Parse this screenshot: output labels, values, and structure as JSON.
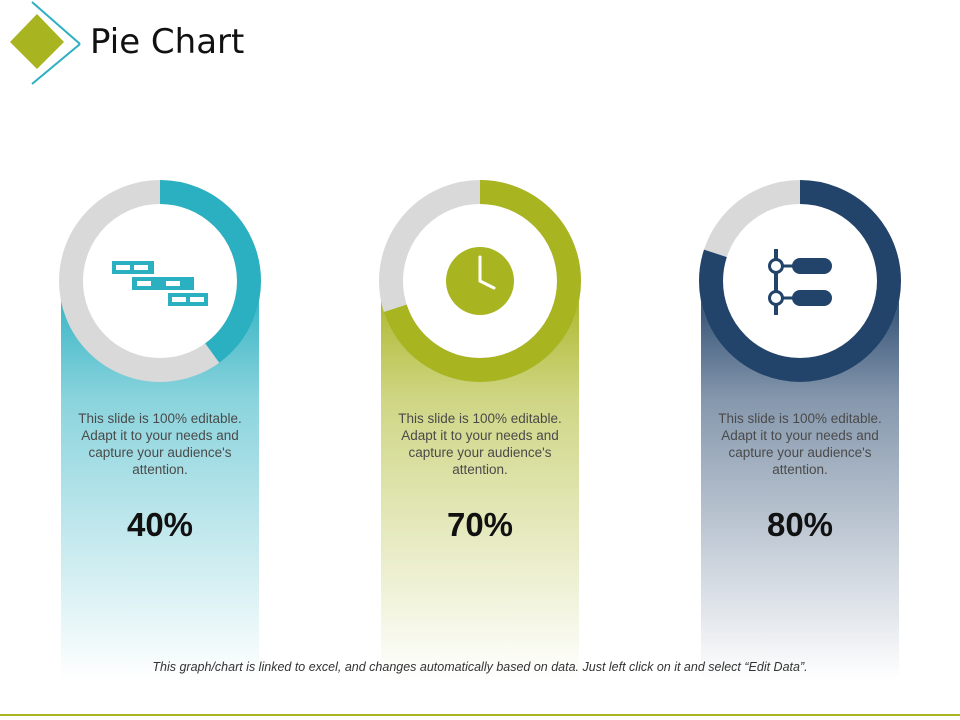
{
  "title": "Pie Chart",
  "footnote": "This graph/chart is linked to excel, and changes automatically based on data. Just left click on it and select “Edit Data”.",
  "colors": {
    "teal": "#2bb0c1",
    "olive": "#a8b420",
    "navy": "#22436a",
    "track": "#d9d9d9",
    "rule": "#a8b420"
  },
  "chart_data": {
    "type": "pie",
    "title": "",
    "items": [
      {
        "value": 40,
        "label": "40%",
        "text": "This slide is 100% editable. Adapt it to your needs and capture your audience's attention.",
        "color": "#2bb0c1",
        "icon": "schedule-bars-icon"
      },
      {
        "value": 70,
        "label": "70%",
        "text": "This slide is 100% editable. Adapt it to your needs and capture your audience's attention.",
        "color": "#a8b420",
        "icon": "clock-icon"
      },
      {
        "value": 80,
        "label": "80%",
        "text": "This slide is 100% editable. Adapt it to your needs and capture your audience's attention.",
        "color": "#22436a",
        "icon": "hierarchy-icon"
      }
    ]
  }
}
